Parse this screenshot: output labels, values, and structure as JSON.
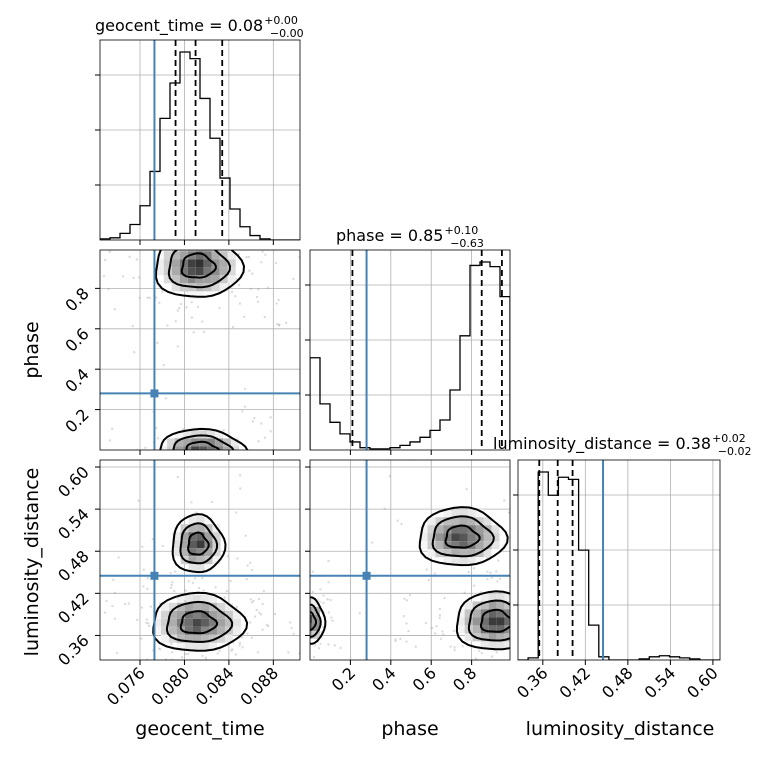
{
  "chart_data": {
    "type": "corner",
    "parameters": [
      "geocent_time",
      "phase",
      "luminosity_distance"
    ],
    "truths": {
      "geocent_time": 0.0773,
      "phase": 0.28,
      "luminosity_distance": 0.445,
      "color": "#4682b4"
    },
    "titles": [
      {
        "param": "geocent_time",
        "text": "geocent_time = 0.08",
        "sup": "+0.00",
        "sub": "−0.00"
      },
      {
        "param": "phase",
        "text": "phase = 0.85",
        "sup": "+0.10",
        "sub": "−0.63"
      },
      {
        "param": "luminosity_distance",
        "text": "luminosity_distance = 0.38",
        "sup": "+0.02",
        "sub": "−0.02"
      }
    ],
    "quantiles": {
      "geocent_time": [
        0.0792,
        0.081,
        0.0834
      ],
      "phase": [
        0.21,
        0.85,
        0.95
      ],
      "luminosity_distance": [
        0.355,
        0.381,
        0.402
      ]
    },
    "axes": {
      "geocent_time": {
        "range": [
          0.0724,
          0.0904
        ],
        "ticks": [
          0.076,
          0.08,
          0.084,
          0.088
        ],
        "tick_labels": [
          "0.076",
          "0.080",
          "0.084",
          "0.088"
        ]
      },
      "phase": {
        "range": [
          0.0,
          0.99
        ],
        "ticks_x": [
          0.2,
          0.4,
          0.6,
          0.8
        ],
        "tick_labels_x": [
          "0.2",
          "0.4",
          "0.6",
          "0.8"
        ],
        "ticks_y": [
          0.2,
          0.4,
          0.6,
          0.8
        ],
        "tick_labels_y": [
          "0.2",
          "0.4",
          "0.6",
          "0.8"
        ]
      },
      "luminosity_distance": {
        "range": [
          0.325,
          0.61
        ],
        "ticks_x": [
          0.36,
          0.42,
          0.48,
          0.54,
          0.6
        ],
        "tick_labels_x": [
          "0.36",
          "0.42",
          "0.48",
          "0.54",
          "0.60"
        ],
        "ticks_y": [
          0.36,
          0.42,
          0.48,
          0.54,
          0.6
        ],
        "tick_labels_y": [
          "0.36",
          "0.42",
          "0.48",
          "0.54",
          "0.60"
        ]
      }
    },
    "histograms": {
      "geocent_time": {
        "edges_start": 0.0724,
        "edges_end": 0.0904,
        "counts": [
          1,
          2,
          6,
          14,
          31,
          62,
          110,
          142,
          170,
          164,
          128,
          92,
          56,
          28,
          12,
          4,
          1,
          0,
          0,
          0
        ]
      },
      "phase": {
        "edges_start": 0.0,
        "edges_end": 0.99,
        "counts": [
          80,
          40,
          24,
          14,
          7,
          2,
          1,
          1,
          2,
          4,
          7,
          11,
          17,
          26,
          52,
          99,
          160,
          163,
          159,
          133
        ]
      },
      "luminosity_distance": {
        "edges_start": 0.325,
        "edges_end": 0.61,
        "counts": [
          0,
          2,
          178,
          156,
          173,
          171,
          104,
          33,
          3,
          0,
          0,
          0,
          1,
          3,
          4,
          3,
          2,
          1,
          0,
          0
        ]
      }
    },
    "grid": true,
    "xlabel_positions": "bottom",
    "ylabel_positions": "left"
  }
}
